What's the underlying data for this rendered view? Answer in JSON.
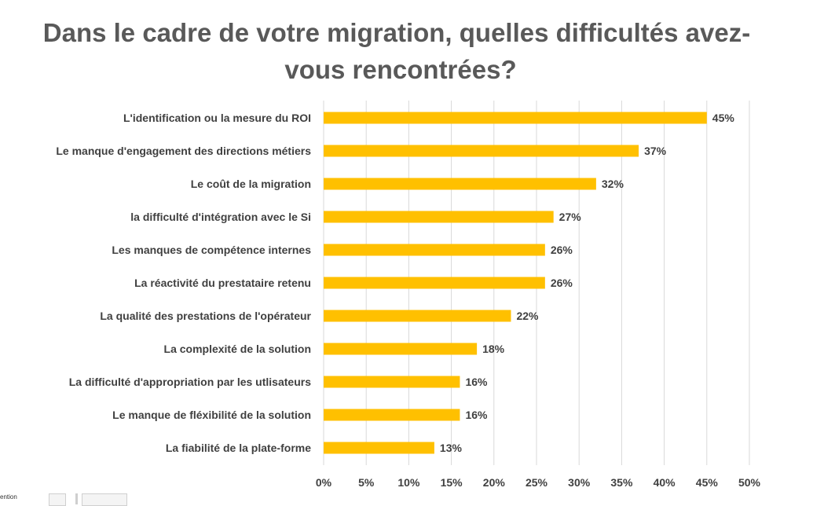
{
  "chart_data": {
    "type": "bar",
    "orientation": "horizontal",
    "title_line1": "Dans le cadre de votre migration, quelles difficultés avez-",
    "title_line2": "vous rencontrées?",
    "categories": [
      "L'identification ou la mesure du ROI",
      "Le manque d'engagement des directions métiers",
      "Le coût de la migration",
      "la difficulté d'intégration avec le Si",
      "Les manques de compétence internes",
      "La réactivité du prestataire retenu",
      "La qualité des prestations de l'opérateur",
      "La complexité de la solution",
      "La difficulté d'appropriation par les utlisateurs",
      "Le manque de fléxibilité de la solution",
      "La fiabilité de la plate-forme"
    ],
    "values": [
      45,
      37,
      32,
      27,
      26,
      26,
      22,
      18,
      16,
      16,
      13
    ],
    "value_labels": [
      "45%",
      "37%",
      "32%",
      "27%",
      "26%",
      "26%",
      "22%",
      "18%",
      "16%",
      "16%",
      "13%"
    ],
    "xlim": [
      0,
      50
    ],
    "xticks": [
      "0%",
      "5%",
      "10%",
      "15%",
      "20%",
      "25%",
      "30%",
      "35%",
      "40%",
      "45%",
      "50%"
    ],
    "grid": true,
    "bar_color": "#FFC000",
    "grid_color": "#D9D9D9",
    "text_color": "#404040"
  },
  "footer": {
    "snippet": "ention"
  }
}
